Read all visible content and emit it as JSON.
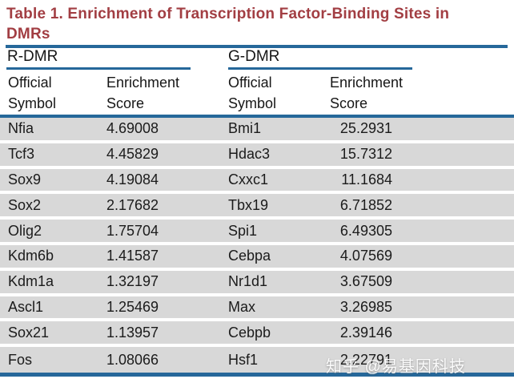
{
  "title": {
    "line1": "Table 1.  Enrichment of Transcription Factor-Binding Sites in",
    "line2": "DMRs"
  },
  "colors": {
    "title_red": "#a23e43",
    "rule_blue": "#26689a",
    "row_gray": "#d8d8d8"
  },
  "table": {
    "groups": [
      {
        "name": "R-DMR",
        "columns": [
          "Official Symbol",
          "Enrichment Score"
        ],
        "rows": [
          {
            "symbol": "Nfia",
            "score": "4.69008"
          },
          {
            "symbol": "Tcf3",
            "score": "4.45829"
          },
          {
            "symbol": "Sox9",
            "score": "4.19084"
          },
          {
            "symbol": "Sox2",
            "score": "2.17682"
          },
          {
            "symbol": "Olig2",
            "score": "1.75704"
          },
          {
            "symbol": "Kdm6b",
            "score": "1.41587"
          },
          {
            "symbol": "Kdm1a",
            "score": "1.32197"
          },
          {
            "symbol": "Ascl1",
            "score": "1.25469"
          },
          {
            "symbol": "Sox21",
            "score": "1.13957"
          },
          {
            "symbol": "Fos",
            "score": "1.08066"
          }
        ]
      },
      {
        "name": "G-DMR",
        "columns": [
          "Official Symbol",
          "Enrichment Score"
        ],
        "rows": [
          {
            "symbol": "Bmi1",
            "score": "25.2931"
          },
          {
            "symbol": "Hdac3",
            "score": "15.7312"
          },
          {
            "symbol": "Cxxc1",
            "score": "11.1684"
          },
          {
            "symbol": "Tbx19",
            "score": "6.71852"
          },
          {
            "symbol": "Spi1",
            "score": "6.49305"
          },
          {
            "symbol": "Cebpa",
            "score": "4.07569"
          },
          {
            "symbol": "Nr1d1",
            "score": "3.67509"
          },
          {
            "symbol": "Max",
            "score": "3.26985"
          },
          {
            "symbol": "Cebpb",
            "score": "2.39146"
          },
          {
            "symbol": "Hsf1",
            "score": "2.22791"
          }
        ]
      }
    ]
  },
  "watermark": "知乎 @易基因科技"
}
